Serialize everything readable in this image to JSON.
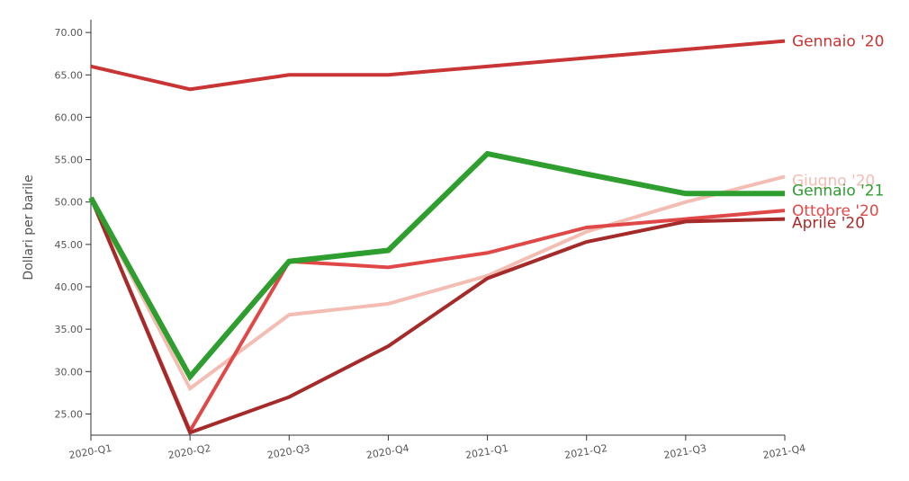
{
  "chart_data": {
    "type": "line",
    "title": "",
    "xlabel": "",
    "ylabel": "Dollari per barile",
    "categories": [
      "2020-Q1",
      "2020-Q2",
      "2020-Q3",
      "2020-Q4",
      "2021-Q1",
      "2021-Q2",
      "2021-Q3",
      "2021-Q4"
    ],
    "ylim": [
      22.5,
      71.5
    ],
    "yticks": [
      "25.00",
      "30.00",
      "35.00",
      "40.00",
      "45.00",
      "50.00",
      "55.00",
      "60.00",
      "65.00",
      "70.00"
    ],
    "grid": false,
    "legend": "inline-right",
    "series": [
      {
        "name": "Gennaio '20",
        "color": "#c93434",
        "values": [
          66.0,
          63.3,
          65.0,
          65.0,
          66.0,
          67.0,
          68.0,
          69.0
        ]
      },
      {
        "name": "Giugno '20",
        "color": "#f4bdb3",
        "values": [
          50.5,
          28.0,
          36.7,
          38.0,
          41.3,
          46.5,
          50.0,
          53.0
        ]
      },
      {
        "name": "Ottobre '20",
        "color": "#e04848",
        "values": [
          50.5,
          23.0,
          43.0,
          42.3,
          44.0,
          47.0,
          48.0,
          49.0
        ]
      },
      {
        "name": "Aprile '20",
        "color": "#a52a2a",
        "values": [
          50.5,
          22.8,
          27.0,
          33.0,
          41.0,
          45.3,
          47.7,
          48.0
        ]
      },
      {
        "name": "Gennaio '21",
        "color": "#2e9e2e",
        "values": [
          50.5,
          29.4,
          43.0,
          44.3,
          55.7,
          53.3,
          51.0,
          51.0
        ]
      }
    ]
  }
}
